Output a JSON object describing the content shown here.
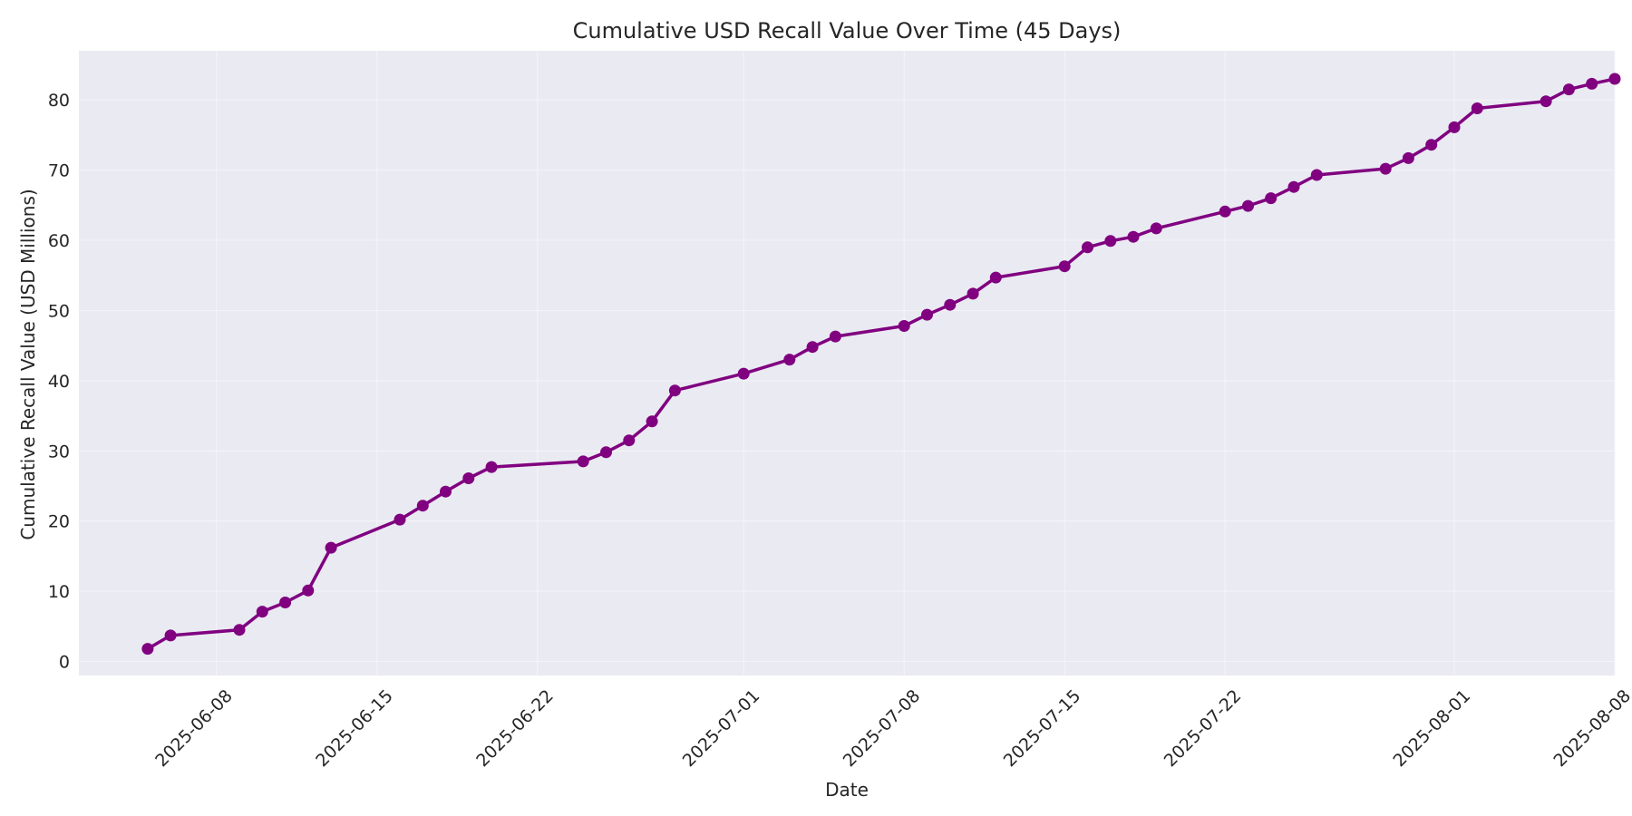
{
  "chart_data": {
    "type": "line",
    "title": "Cumulative USD Recall Value Over Time (45 Days)",
    "xlabel": "Date",
    "ylabel": "Cumulative Recall Value (USD Millions)",
    "xlim": [
      "2025-06-02",
      "2025-08-08"
    ],
    "ylim": [
      -2,
      87
    ],
    "grid": true,
    "x_ticks": [
      "2025-06-08",
      "2025-06-15",
      "2025-06-22",
      "2025-07-01",
      "2025-07-08",
      "2025-07-15",
      "2025-07-22",
      "2025-08-01",
      "2025-08-08"
    ],
    "y_ticks": [
      0,
      10,
      20,
      30,
      40,
      50,
      60,
      70,
      80
    ],
    "colors": {
      "line": "#800080",
      "plot_bg": "#eaeaf2",
      "grid": "#f4f4f8"
    },
    "series": [
      {
        "x": [
          "2025-06-05",
          "2025-06-06",
          "2025-06-09",
          "2025-06-10",
          "2025-06-11",
          "2025-06-12",
          "2025-06-13",
          "2025-06-16",
          "2025-06-17",
          "2025-06-18",
          "2025-06-19",
          "2025-06-20",
          "2025-06-24",
          "2025-06-25",
          "2025-06-26",
          "2025-06-27",
          "2025-06-28",
          "2025-07-01",
          "2025-07-03",
          "2025-07-04",
          "2025-07-05",
          "2025-07-08",
          "2025-07-09",
          "2025-07-10",
          "2025-07-11",
          "2025-07-12",
          "2025-07-15",
          "2025-07-16",
          "2025-07-17",
          "2025-07-18",
          "2025-07-19",
          "2025-07-22",
          "2025-07-23",
          "2025-07-24",
          "2025-07-25",
          "2025-07-26",
          "2025-07-29",
          "2025-07-30",
          "2025-07-31",
          "2025-08-01",
          "2025-08-02",
          "2025-08-05",
          "2025-08-06",
          "2025-08-07",
          "2025-08-08"
        ],
        "values": [
          1.8,
          3.7,
          4.5,
          7.1,
          8.4,
          10.1,
          16.2,
          20.2,
          22.2,
          24.2,
          26.1,
          27.7,
          28.5,
          29.8,
          31.5,
          34.2,
          38.6,
          41.0,
          43.0,
          44.8,
          46.3,
          47.8,
          49.4,
          50.8,
          52.4,
          54.7,
          56.3,
          59.0,
          59.9,
          60.5,
          61.7,
          64.1,
          64.9,
          66.0,
          67.6,
          69.3,
          70.2,
          71.7,
          73.6,
          76.1,
          78.8,
          79.8,
          81.5,
          82.3,
          83.0
        ]
      }
    ]
  }
}
